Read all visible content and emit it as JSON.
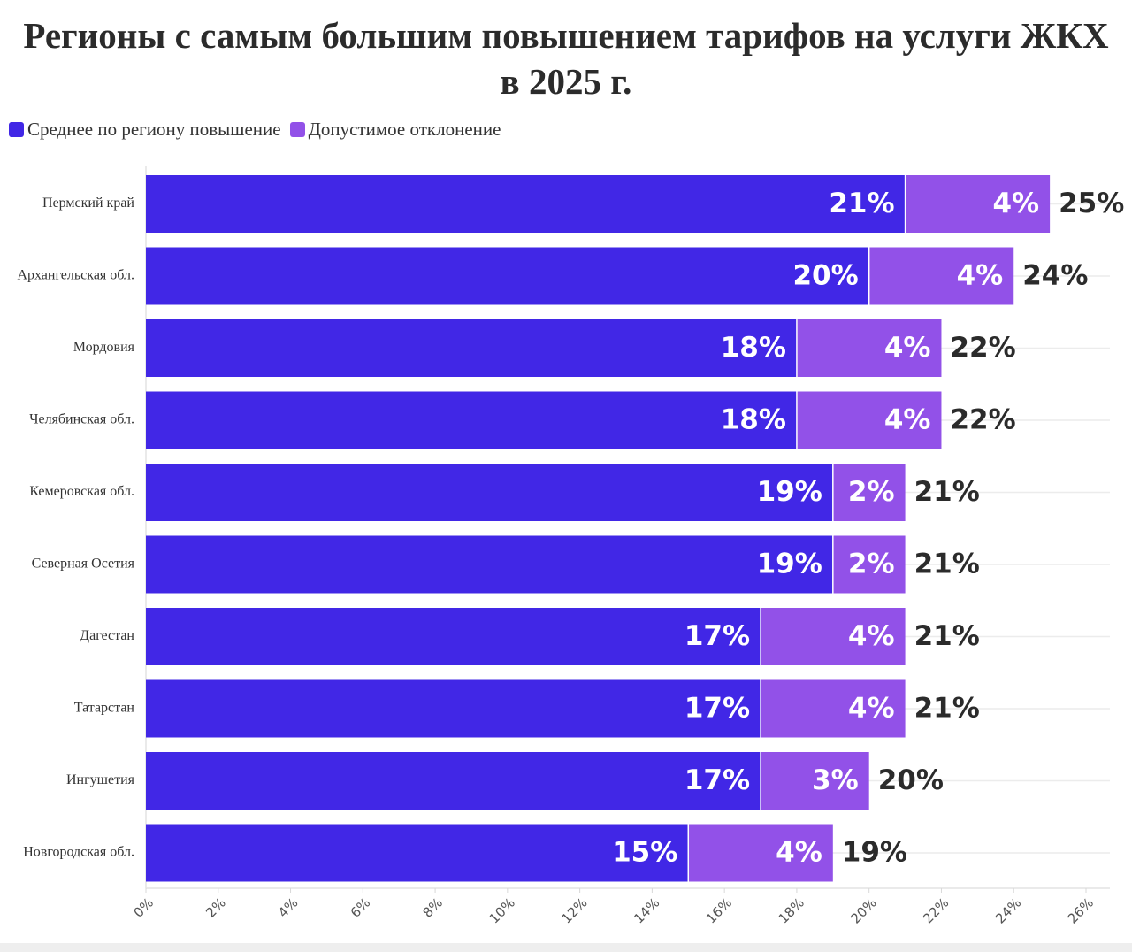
{
  "chart_data": {
    "type": "bar",
    "orientation": "horizontal",
    "stacked": true,
    "title_line1": "Регионы с самым большим повышением тарифов на услуги ЖКХ",
    "title_line2": "в 2025 г.",
    "categories": [
      "Пермский край",
      "Архангельская обл.",
      "Мордовия",
      "Челябинская обл.",
      "Кемеровская обл.",
      "Северная Осетия",
      "Дагестан",
      "Татарстан",
      "Ингушетия",
      "Новгородская обл."
    ],
    "series": [
      {
        "name": "Среднее по региону повышение",
        "color": "#4127e6",
        "values": [
          21,
          20,
          18,
          18,
          19,
          19,
          17,
          17,
          17,
          15
        ]
      },
      {
        "name": "Допустимое отклонение",
        "color": "#9251e8",
        "values": [
          4,
          4,
          4,
          4,
          2,
          2,
          4,
          4,
          3,
          4
        ]
      }
    ],
    "totals": [
      25,
      24,
      22,
      22,
      21,
      21,
      21,
      21,
      20,
      19
    ],
    "xlim": [
      0,
      26
    ],
    "x_ticks": [
      "0%",
      "2%",
      "4%",
      "6%",
      "8%",
      "10%",
      "12%",
      "14%",
      "16%",
      "18%",
      "20%",
      "22%",
      "24%",
      "26%"
    ],
    "x_tick_values": [
      0,
      2,
      4,
      6,
      8,
      10,
      12,
      14,
      16,
      18,
      20,
      22,
      24,
      26
    ],
    "value_suffix": "%",
    "grid": true,
    "legend": "top-left"
  }
}
